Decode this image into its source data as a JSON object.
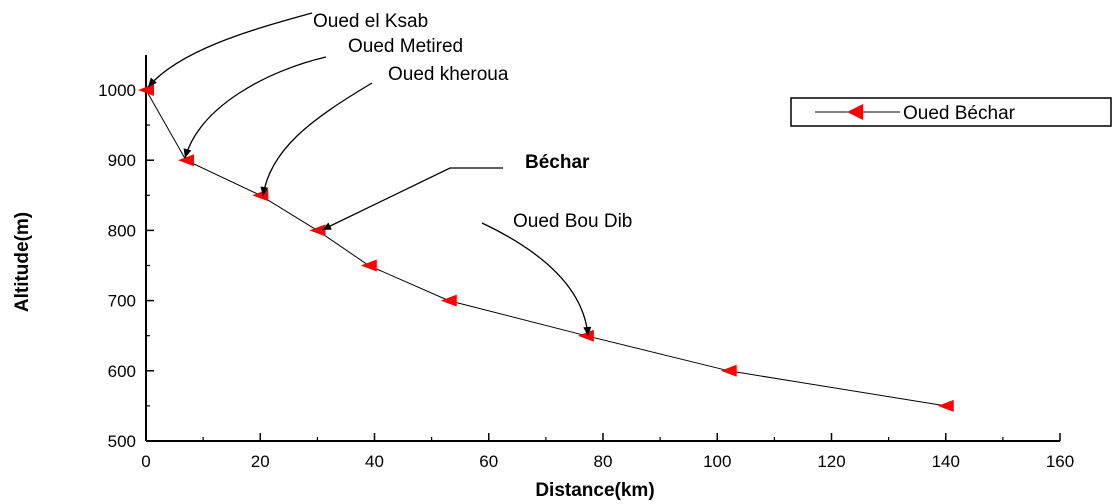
{
  "chart_data": {
    "type": "line",
    "xlabel": "Distance(km)",
    "ylabel": "Altitude(m)",
    "xlim": [
      0,
      160
    ],
    "ylim": [
      500,
      1050
    ],
    "x_ticks": [
      0,
      20,
      40,
      60,
      80,
      100,
      120,
      140,
      160
    ],
    "y_ticks": [
      500,
      600,
      700,
      800,
      900,
      1000
    ],
    "grid": false,
    "legend_position": "top-right",
    "series": [
      {
        "name": "Oued Béchar",
        "color": "#ff0000",
        "line_color": "#000000",
        "marker": "left-triangle",
        "x": [
          0,
          7,
          20,
          30,
          39,
          53,
          77,
          102,
          140
        ],
        "y": [
          1000,
          900,
          850,
          800,
          750,
          700,
          650,
          600,
          550
        ]
      }
    ],
    "annotations": [
      {
        "text": "Oued el Ksab",
        "bold": false,
        "target_x": 0,
        "target_y": 1000
      },
      {
        "text": "Oued Metired",
        "bold": false,
        "target_x": 7,
        "target_y": 900
      },
      {
        "text": "Oued kheroua",
        "bold": false,
        "target_x": 20,
        "target_y": 850
      },
      {
        "text": "Béchar",
        "bold": true,
        "target_x": 30,
        "target_y": 800
      },
      {
        "text": "Oued Bou Dib",
        "bold": false,
        "target_x": 77,
        "target_y": 650
      }
    ]
  }
}
